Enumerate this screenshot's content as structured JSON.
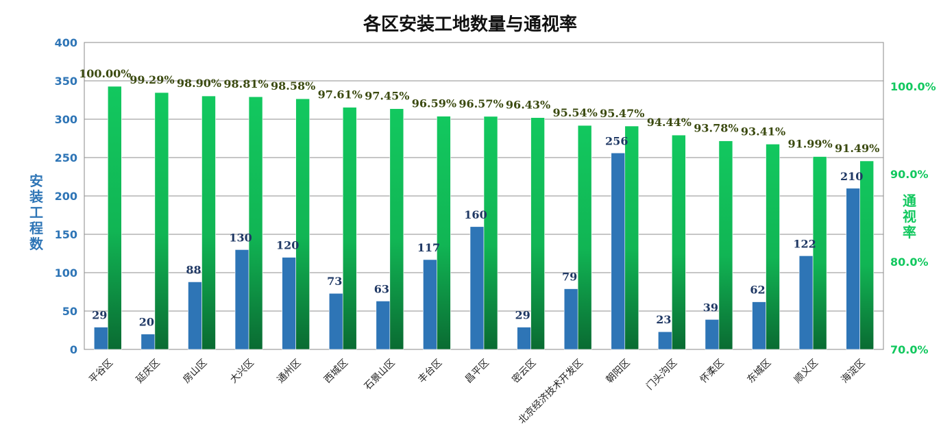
{
  "chart_data": {
    "type": "bar",
    "title": "各区安装工地数量与通视率",
    "categories": [
      "平谷区",
      "延庆区",
      "房山区",
      "大兴区",
      "通州区",
      "西城区",
      "石景山区",
      "丰台区",
      "昌平区",
      "密云区",
      "北京经济技术开发区",
      "朝阳区",
      "门头沟区",
      "怀柔区",
      "东城区",
      "顺义区",
      "海淀区"
    ],
    "series": [
      {
        "name": "安装工程数",
        "axis": "left",
        "color": "#2e75b6",
        "values": [
          29,
          20,
          88,
          130,
          120,
          73,
          63,
          117,
          160,
          29,
          79,
          256,
          23,
          39,
          62,
          122,
          210
        ],
        "labels": [
          "29",
          "20",
          "88",
          "130",
          "120",
          "73",
          "63",
          "117",
          "160",
          "29",
          "79",
          "256",
          "23",
          "39",
          "62",
          "122",
          "210"
        ]
      },
      {
        "name": "通视率",
        "axis": "right",
        "color": "#12c85f",
        "color_dark": "#0a6b32",
        "values": [
          100.0,
          99.29,
          98.9,
          98.81,
          98.58,
          97.61,
          97.45,
          96.59,
          96.57,
          96.43,
          95.54,
          95.47,
          94.44,
          93.78,
          93.41,
          91.99,
          91.49
        ],
        "labels": [
          "100.00%",
          "99.29%",
          "98.90%",
          "98.81%",
          "98.58%",
          "97.61%",
          "97.45%",
          "96.59%",
          "96.57%",
          "96.43%",
          "95.54%",
          "95.47%",
          "94.44%",
          "93.78%",
          "93.41%",
          "91.99%",
          "91.49%"
        ]
      }
    ],
    "y_left": {
      "label": "安装工程数",
      "color": "#2e75b6",
      "ylim": [
        0,
        400
      ],
      "ticks": [
        0,
        50,
        100,
        150,
        200,
        250,
        300,
        350,
        400
      ],
      "tick_labels": [
        "0",
        "50",
        "100",
        "150",
        "200",
        "250",
        "300",
        "350",
        "400"
      ]
    },
    "y_right": {
      "label": "通视率",
      "color": "#12c85f",
      "ylim": [
        70,
        105
      ],
      "ticks": [
        70,
        80,
        90,
        100
      ],
      "tick_labels": [
        "70.0%",
        "80.0%",
        "90.0%",
        "100.0%"
      ]
    },
    "grid": true,
    "legend": "none"
  }
}
